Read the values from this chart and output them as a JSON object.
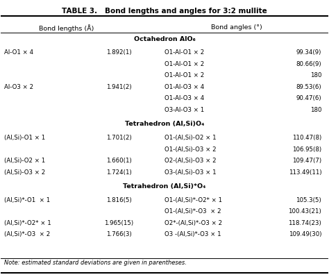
{
  "title": "TABLE 3.   Bond lengths and angles for 3:2 mullite",
  "col_headers": [
    "Bond lengths (Å)",
    "Bond angles (°)"
  ],
  "note": "Note: estimated standard deviations are given in parentheses.",
  "sections": [
    {
      "header": "Octahedron AlO₆",
      "rows": [
        {
          "bond": "Al-O1 × 4",
          "length": "1.892(1)",
          "angle_pair": "O1-Al-O1 × 2",
          "angle_val": "99.34(9)"
        },
        {
          "bond": "",
          "length": "",
          "angle_pair": "O1-Al-O1 × 2",
          "angle_val": "80.66(9)"
        },
        {
          "bond": "",
          "length": "",
          "angle_pair": "O1-Al-O1 × 2",
          "angle_val": "180"
        },
        {
          "bond": "Al-O3 × 2",
          "length": "1.941(2)",
          "angle_pair": "O1-Al-O3 × 4",
          "angle_val": "89.53(6)"
        },
        {
          "bond": "",
          "length": "",
          "angle_pair": "O1-Al-O3 × 4",
          "angle_val": "90.47(6)"
        },
        {
          "bond": "",
          "length": "",
          "angle_pair": "O3-Al-O3 × 1",
          "angle_val": "180"
        }
      ]
    },
    {
      "header": "Tetrahedron (Al,Si)O₄",
      "rows": [
        {
          "bond": "(Al,Si)-O1 × 1",
          "length": "1.701(2)",
          "angle_pair": "O1-(Al,Si)-O2 × 1",
          "angle_val": "110.47(8)"
        },
        {
          "bond": "",
          "length": "",
          "angle_pair": "O1-(Al,Si)-O3 × 2",
          "angle_val": "106.95(8)"
        },
        {
          "bond": "(Al,Si)-O2 × 1",
          "length": "1.660(1)",
          "angle_pair": "O2-(Al,Si)-O3 × 2",
          "angle_val": "109.47(7)"
        },
        {
          "bond": "(Al,Si)-O3 × 2",
          "length": "1.724(1)",
          "angle_pair": "O3-(Al,Si)-O3 × 1",
          "angle_val": "113.49(11)"
        }
      ]
    },
    {
      "header": "Tetrahedron (Al,Si)*O₄",
      "rows": [
        {
          "bond": "(Al,Si)*-O1  × 1",
          "length": "1.816(5)",
          "angle_pair": "O1-(Al,Si)*-O2* × 1",
          "angle_val": "105.3(5)"
        },
        {
          "bond": "",
          "length": "",
          "angle_pair": "O1-(Al,Si)*-O3  × 2",
          "angle_val": "100.43(21)"
        },
        {
          "bond": "(Al,Si)*-O2* × 1",
          "length": "1.965(15)",
          "angle_pair": "O2*-(Al,Si)*-O3 × 2",
          "angle_val": "118.74(23)"
        },
        {
          "bond": "(Al,Si)*-O3  × 2",
          "length": "1.766(3)",
          "angle_pair": "O3 -(Al,Si)*-O3 × 1",
          "angle_val": "109.49(30)"
        }
      ]
    }
  ],
  "bg_color": "#f5f5f0",
  "header_bg": "#e8e8e0"
}
